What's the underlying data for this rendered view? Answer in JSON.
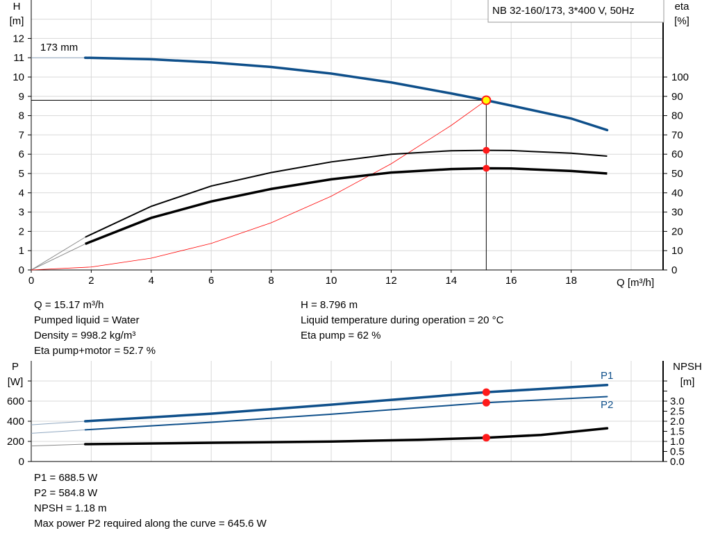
{
  "chart_data": [
    {
      "type": "line",
      "title_box": "NB 32-160/173, 3*400 V, 50Hz",
      "xlabel": "Q [m³/h]",
      "ylabel_left": [
        "H",
        "[m]"
      ],
      "ylabel_right": [
        "eta",
        "[%]"
      ],
      "xlim": [
        0,
        21
      ],
      "ylim_left": [
        0,
        13.9
      ],
      "ylim_right": [
        0,
        139
      ],
      "x_ticks": [
        0,
        2,
        4,
        6,
        8,
        10,
        12,
        14,
        16,
        18
      ],
      "y_ticks_left": [
        0,
        1,
        2,
        3,
        4,
        5,
        6,
        7,
        8,
        9,
        10,
        11,
        12
      ],
      "y_ticks_right": [
        0,
        10,
        20,
        30,
        40,
        50,
        60,
        70,
        80,
        90,
        100
      ],
      "grid": true,
      "curve_label": "173 mm",
      "series": [
        {
          "key": "H",
          "axis": "left",
          "color": "#0e4f8a",
          "x": [
            1.8,
            4,
            6,
            8,
            10,
            12,
            14,
            15.17,
            16,
            18,
            19.2
          ],
          "y": [
            11.0,
            10.92,
            10.76,
            10.52,
            10.18,
            9.72,
            9.15,
            8.796,
            8.52,
            7.85,
            7.25
          ]
        },
        {
          "key": "eta_pump",
          "axis": "right",
          "color": "#000000",
          "x": [
            1.8,
            4,
            6,
            8,
            10,
            12,
            14,
            15.17,
            16,
            18,
            19.2
          ],
          "y": [
            17,
            33,
            43.5,
            50.5,
            56,
            60,
            61.8,
            62,
            61.9,
            60.5,
            59
          ]
        },
        {
          "key": "eta_total",
          "axis": "right",
          "color": "#000000",
          "x": [
            1.8,
            4,
            6,
            8,
            10,
            12,
            14,
            15.17,
            16,
            18,
            19.2
          ],
          "y": [
            13.5,
            27,
            35.5,
            42,
            47,
            50.5,
            52.3,
            52.7,
            52.6,
            51.3,
            50
          ]
        },
        {
          "key": "system",
          "axis": "left",
          "color": "#ff0000",
          "x": [
            0,
            2,
            4,
            6,
            8,
            10,
            12,
            14,
            15.17
          ],
          "y": [
            0,
            0.153,
            0.612,
            1.376,
            2.446,
            3.822,
            5.504,
            7.491,
            8.796
          ]
        }
      ],
      "operating_point": {
        "Q": 15.17,
        "H": 8.796,
        "eta_pump": 62,
        "eta_total": 52.7
      }
    },
    {
      "type": "line",
      "ylabel_left": [
        "P",
        "[W]"
      ],
      "ylabel_right": [
        "NPSH",
        "[m]"
      ],
      "xlim": [
        0,
        21
      ],
      "ylim_left": [
        0,
        1000
      ],
      "y_ticks_left": [
        0,
        200,
        400,
        600
      ],
      "y_ticks_right": [
        "0.0",
        "0.5",
        "1.0",
        "1.5",
        "2.0",
        "2.5",
        "3.0"
      ],
      "grid": true,
      "series": [
        {
          "name": "P1",
          "color": "#0e4f8a",
          "x": [
            0,
            1.8,
            6,
            10,
            15.17,
            19.2
          ],
          "y": [
            365,
            400,
            475,
            565,
            688.5,
            760
          ]
        },
        {
          "name": "P2",
          "color": "#0e4f8a",
          "x": [
            0,
            1.8,
            6,
            10,
            15.17,
            19.2
          ],
          "y": [
            280,
            315,
            390,
            470,
            584.8,
            645
          ]
        },
        {
          "key": "NPSH",
          "color": "#000000",
          "x": [
            0,
            1.8,
            6,
            10,
            13,
            15.17,
            17,
            19.2
          ],
          "y": [
            0.77,
            0.86,
            0.93,
            0.99,
            1.08,
            1.18,
            1.32,
            1.65
          ]
        }
      ],
      "operating_point": {
        "Q": 15.17,
        "P1": 688.5,
        "P2": 584.8,
        "NPSH": 1.18
      }
    }
  ],
  "info_top_left": [
    "Q = 15.17 m³/h",
    "Pumped liquid = Water",
    "Density = 998.2 kg/m³",
    "Eta pump+motor = 52.7 %"
  ],
  "info_top_right": [
    "H = 8.796 m",
    "Liquid temperature during operation = 20 °C",
    "Eta pump = 62 %"
  ],
  "info_bottom": [
    "P1 = 688.5 W",
    "P2 = 584.8 W",
    "NPSH = 1.18 m",
    "Max power P2 required along the curve = 645.6 W"
  ]
}
